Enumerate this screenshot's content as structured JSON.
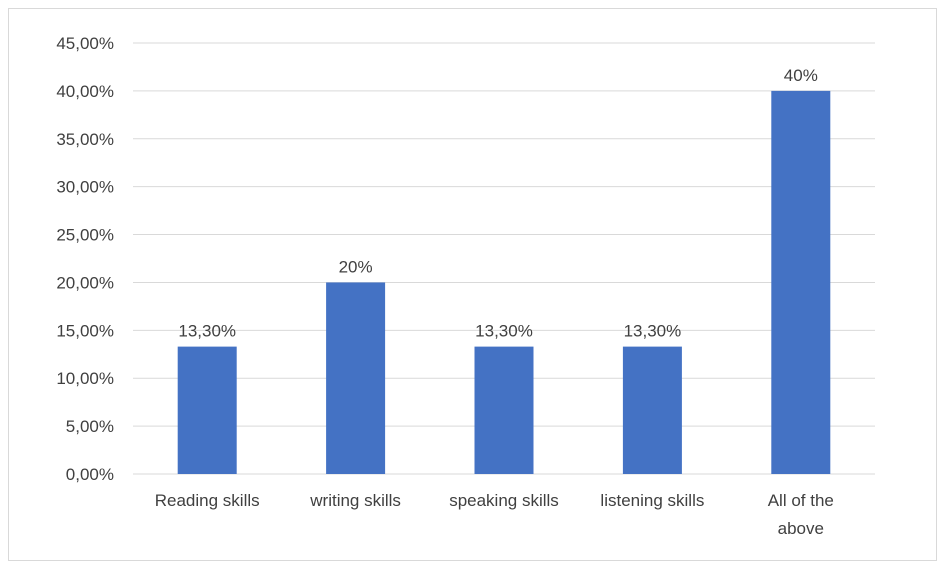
{
  "chart_data": {
    "type": "bar",
    "title": "",
    "xlabel": "",
    "ylabel": "",
    "categories": [
      [
        "Reading skills"
      ],
      [
        "writing skills"
      ],
      [
        "speaking skills"
      ],
      [
        "listening skills"
      ],
      [
        "All of the",
        "above"
      ]
    ],
    "values": [
      13.3,
      20,
      13.3,
      13.3,
      40
    ],
    "data_labels": [
      "13,30%",
      "20%",
      "13,30%",
      "13,30%",
      "40%"
    ],
    "ylim": [
      0,
      45
    ],
    "y_ticks": [
      {
        "value": 0,
        "label": "0,00%"
      },
      {
        "value": 5,
        "label": "5,00%"
      },
      {
        "value": 10,
        "label": "10,00%"
      },
      {
        "value": 15,
        "label": "15,00%"
      },
      {
        "value": 20,
        "label": "20,00%"
      },
      {
        "value": 25,
        "label": "25,00%"
      },
      {
        "value": 30,
        "label": "30,00%"
      },
      {
        "value": 35,
        "label": "35,00%"
      },
      {
        "value": 40,
        "label": "40,00%"
      },
      {
        "value": 45,
        "label": "45,00%"
      }
    ],
    "grid": true,
    "legend": "none",
    "bar_color": "#4472c4",
    "grid_color": "#d9d9d9",
    "text_color": "#404040"
  }
}
